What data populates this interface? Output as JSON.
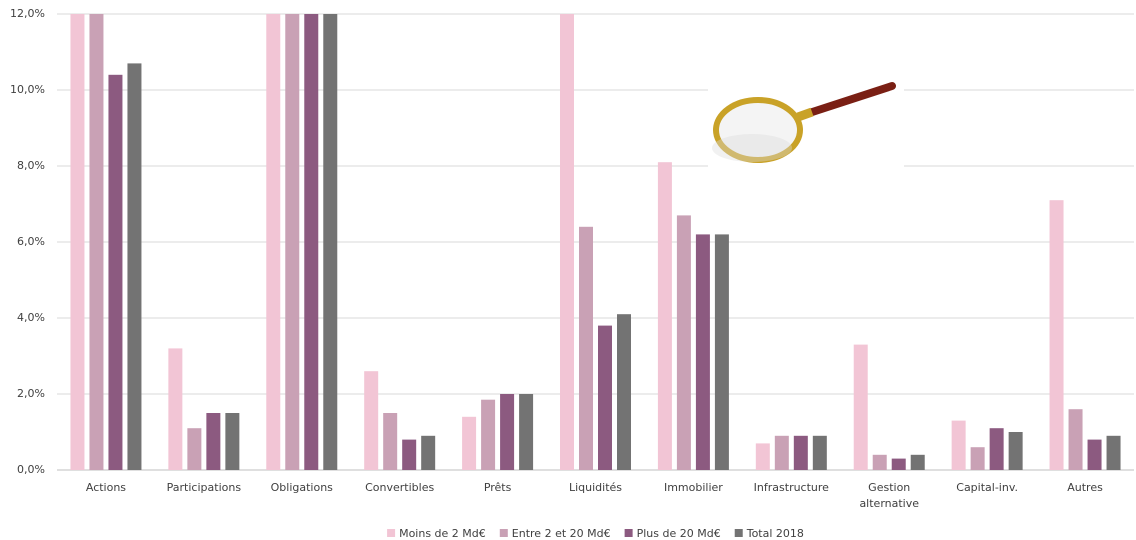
{
  "chart_data": {
    "type": "bar",
    "categories": [
      "Actions",
      "Participations",
      "Obligations",
      "Convertibles",
      "Prêts",
      "Liquidités",
      "Immobilier",
      "Infrastructure",
      "Gestion alternative",
      "Capital-inv.",
      "Autres"
    ],
    "series": [
      {
        "name": "Moins de 2 Md€",
        "color": "#f2c5d5",
        "values": [
          12,
          3.2,
          12,
          2.6,
          1.4,
          12,
          8.1,
          0.7,
          3.3,
          1.3,
          7.1
        ]
      },
      {
        "name": "Entre 2 et 20 Md€",
        "color": "#c9a1b5",
        "values": [
          12,
          1.1,
          12,
          1.5,
          1.85,
          6.4,
          6.7,
          0.9,
          0.4,
          0.6,
          1.6
        ]
      },
      {
        "name": "Plus de 20 Md€",
        "color": "#8c5a80",
        "values": [
          10.4,
          1.5,
          12,
          0.8,
          2.0,
          3.8,
          6.2,
          0.9,
          0.3,
          1.1,
          0.8
        ]
      },
      {
        "name": "Total 2018",
        "color": "#737373",
        "values": [
          10.7,
          1.5,
          12,
          0.9,
          2.0,
          4.1,
          6.2,
          0.9,
          0.4,
          1.0,
          0.9
        ]
      }
    ],
    "ylim": [
      0,
      12
    ],
    "yticks": [
      {
        "value": 0,
        "label": "0,0%"
      },
      {
        "value": 2,
        "label": "2,0%"
      },
      {
        "value": 4,
        "label": "4,0%"
      },
      {
        "value": 6,
        "label": "6,0%"
      },
      {
        "value": 8,
        "label": "8,0%"
      },
      {
        "value": 10,
        "label": "10,0%"
      },
      {
        "value": 12,
        "label": "12,0%"
      }
    ],
    "grid": true,
    "legend": "bottom"
  }
}
